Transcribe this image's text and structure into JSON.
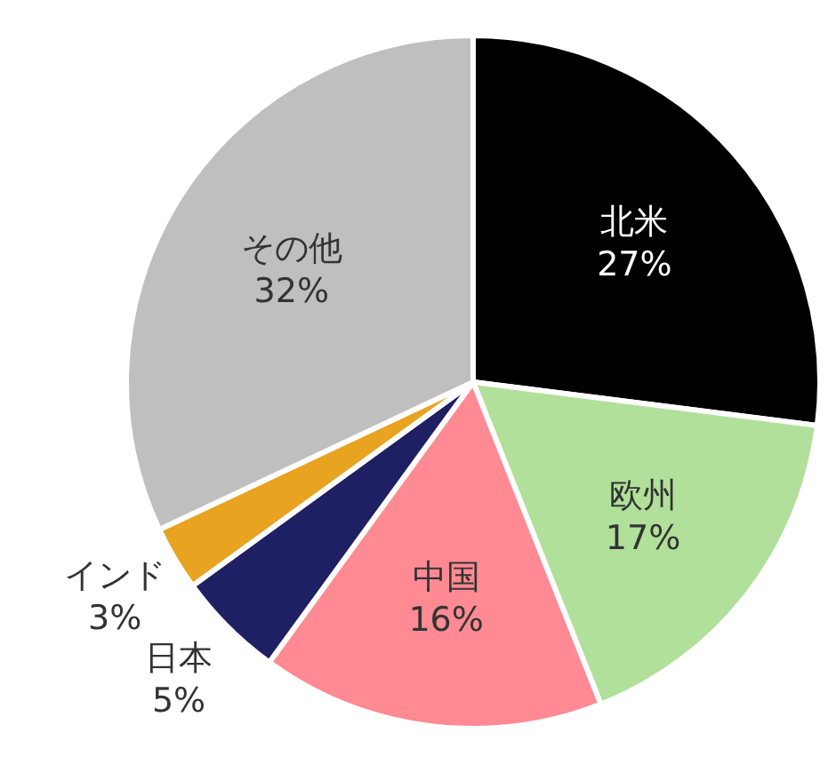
{
  "chart_data": {
    "type": "pie",
    "categories": [
      "北米",
      "欧州",
      "中国",
      "日本",
      "インド",
      "その他"
    ],
    "values": [
      27,
      17,
      16,
      5,
      3,
      32
    ],
    "value_labels": [
      "27%",
      "17%",
      "16%",
      "5%",
      "3%",
      "32%"
    ],
    "colors": [
      "#000000",
      "#b1e09b",
      "#ff8a93",
      "#1f2063",
      "#e8a321",
      "#bfbfbf"
    ]
  }
}
